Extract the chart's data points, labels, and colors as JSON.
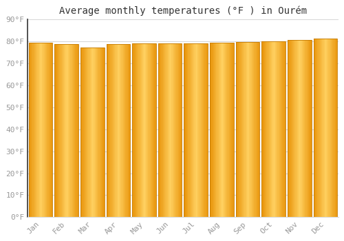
{
  "title": "Average monthly temperatures (°F ) in Ourém",
  "categories": [
    "Jan",
    "Feb",
    "Mar",
    "Apr",
    "May",
    "Jun",
    "Jul",
    "Aug",
    "Sep",
    "Oct",
    "Nov",
    "Dec"
  ],
  "values": [
    79.5,
    78.8,
    77.2,
    78.8,
    79.0,
    79.2,
    79.0,
    79.5,
    79.7,
    80.0,
    80.8,
    81.2
  ],
  "ylim": [
    0,
    90
  ],
  "yticks": [
    0,
    10,
    20,
    30,
    40,
    50,
    60,
    70,
    80,
    90
  ],
  "bar_color_edge": "#E8940A",
  "bar_color_mid": "#FFD060",
  "bar_edge_color": "#C47A00",
  "bg_color": "#ffffff",
  "grid_color": "#d8d8d8",
  "title_fontsize": 10,
  "tick_fontsize": 8,
  "tick_color": "#999999",
  "left_spine_color": "#333333"
}
